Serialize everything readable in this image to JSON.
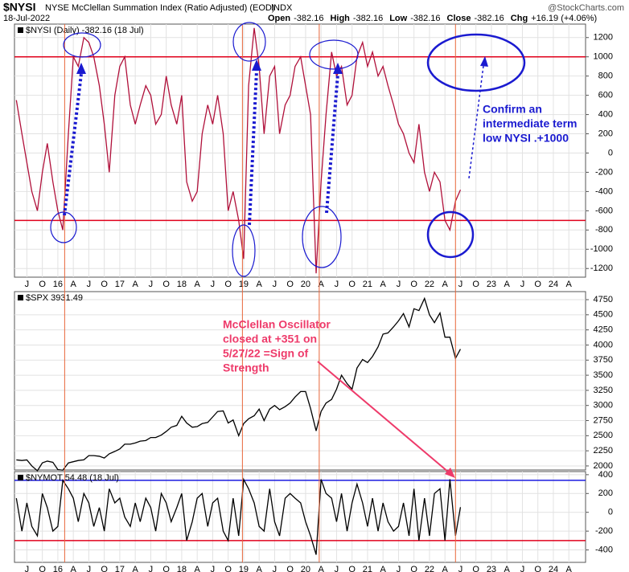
{
  "header": {
    "symbol": "$NYSI",
    "name": "NYSE McClellan Summation Index (Ratio Adjusted) (EOD)",
    "exchange": "INDX",
    "date": "18-Jul-2022",
    "source": "@StockCharts.com",
    "ohlc": [
      {
        "label": "Open",
        "value": -382.16
      },
      {
        "label": "High",
        "value": -382.16
      },
      {
        "label": "Low",
        "value": -382.16
      },
      {
        "label": "Close",
        "value": -382.16
      }
    ],
    "change_label": "Chg",
    "change": "+16.19 (+4.06%)"
  },
  "annotations": {
    "confirm": [
      "Confirm an",
      "intermediate term",
      "low NYSI .+1000"
    ],
    "oscillator": [
      "McClellan Oscillator",
      "closed at +351 on",
      "5/27/22 =Sign of",
      "Strength"
    ]
  },
  "chart_data": [
    {
      "type": "line",
      "label": "$NYSI (Daily) -382.16 (18 Jul)",
      "x": [
        2015.33,
        2015.42,
        2015.5,
        2015.58,
        2015.67,
        2015.75,
        2015.83,
        2015.92,
        2016.0,
        2016.08,
        2016.17,
        2016.25,
        2016.33,
        2016.42,
        2016.5,
        2016.58,
        2016.67,
        2016.75,
        2016.83,
        2016.92,
        2017.0,
        2017.08,
        2017.17,
        2017.25,
        2017.33,
        2017.42,
        2017.5,
        2017.58,
        2017.67,
        2017.75,
        2017.83,
        2017.92,
        2018.0,
        2018.08,
        2018.17,
        2018.25,
        2018.33,
        2018.42,
        2018.5,
        2018.58,
        2018.67,
        2018.75,
        2018.83,
        2018.92,
        2019.0,
        2019.08,
        2019.17,
        2019.25,
        2019.33,
        2019.42,
        2019.5,
        2019.58,
        2019.67,
        2019.75,
        2019.83,
        2019.92,
        2020.0,
        2020.08,
        2020.17,
        2020.25,
        2020.33,
        2020.42,
        2020.5,
        2020.58,
        2020.67,
        2020.75,
        2020.83,
        2020.92,
        2021.0,
        2021.08,
        2021.17,
        2021.25,
        2021.33,
        2021.42,
        2021.5,
        2021.58,
        2021.67,
        2021.75,
        2021.83,
        2021.92,
        2022.0,
        2022.08,
        2022.17,
        2022.25,
        2022.33,
        2022.42,
        2022.5
      ],
      "series": [
        {
          "name": "$NYSI",
          "color": "#b0103a",
          "values": [
            550,
            200,
            -100,
            -400,
            -600,
            -200,
            100,
            -300,
            -600,
            -800,
            200,
            1000,
            900,
            1200,
            1150,
            1000,
            700,
            300,
            -200,
            600,
            900,
            1000,
            500,
            300,
            500,
            700,
            600,
            300,
            400,
            800,
            500,
            300,
            600,
            -300,
            -500,
            -400,
            200,
            500,
            300,
            600,
            200,
            -600,
            -400,
            -700,
            -1100,
            700,
            1300,
            900,
            200,
            800,
            900,
            200,
            500,
            600,
            900,
            1000,
            700,
            400,
            -1250,
            -300,
            400,
            1050,
            800,
            900,
            500,
            600,
            1000,
            1150,
            900,
            1050,
            800,
            900,
            700,
            500,
            300,
            200,
            0,
            -100,
            300,
            -200,
            -400,
            -200,
            -300,
            -700,
            -800,
            -500,
            -382.16
          ]
        }
      ],
      "xlim": [
        2015.3,
        2024.52
      ],
      "ylim": [
        -1290,
        1340
      ],
      "yticks": [
        -1200,
        -1000,
        -800,
        -600,
        -400,
        -200,
        0,
        200,
        400,
        600,
        800,
        1000,
        1200
      ],
      "xticks": [
        {
          "value": 2015.5,
          "label": "J"
        },
        {
          "value": 2015.75,
          "label": "O"
        },
        {
          "value": 2016,
          "label": "16"
        },
        {
          "value": 2016.25,
          "label": "A"
        },
        {
          "value": 2016.5,
          "label": "J"
        },
        {
          "value": 2016.75,
          "label": "O"
        },
        {
          "value": 2017,
          "label": "17"
        },
        {
          "value": 2017.25,
          "label": "A"
        },
        {
          "value": 2017.5,
          "label": "J"
        },
        {
          "value": 2017.75,
          "label": "O"
        },
        {
          "value": 2018,
          "label": "18"
        },
        {
          "value": 2018.25,
          "label": "A"
        },
        {
          "value": 2018.5,
          "label": "J"
        },
        {
          "value": 2018.75,
          "label": "O"
        },
        {
          "value": 2019,
          "label": "19"
        },
        {
          "value": 2019.25,
          "label": "A"
        },
        {
          "value": 2019.5,
          "label": "J"
        },
        {
          "value": 2019.75,
          "label": "O"
        },
        {
          "value": 2020,
          "label": "20"
        },
        {
          "value": 2020.25,
          "label": "A"
        },
        {
          "value": 2020.5,
          "label": "J"
        },
        {
          "value": 2020.75,
          "label": "O"
        },
        {
          "value": 2021,
          "label": "21"
        },
        {
          "value": 2021.25,
          "label": "A"
        },
        {
          "value": 2021.5,
          "label": "J"
        },
        {
          "value": 2021.75,
          "label": "O"
        },
        {
          "value": 2022,
          "label": "22"
        },
        {
          "value": 2022.25,
          "label": "A"
        },
        {
          "value": 2022.5,
          "label": "J"
        },
        {
          "value": 2022.75,
          "label": "O"
        },
        {
          "value": 2023,
          "label": "23"
        },
        {
          "value": 2023.25,
          "label": "A"
        },
        {
          "value": 2023.5,
          "label": "J"
        },
        {
          "value": 2023.75,
          "label": "O"
        },
        {
          "value": 2024,
          "label": "24"
        },
        {
          "value": 2024.25,
          "label": "A"
        }
      ],
      "hlines": [
        {
          "value": 1000,
          "color": "#e0001b"
        },
        {
          "value": -700,
          "color": "#e0001b"
        }
      ],
      "vlines": [
        2016.11,
        2018.98,
        2020.22,
        2022.42
      ],
      "vline_color": "#e8663a",
      "grid": true
    },
    {
      "type": "line",
      "label": "$SPX 3931.49",
      "x": [
        2015.33,
        2015.42,
        2015.5,
        2015.58,
        2015.67,
        2015.75,
        2015.83,
        2015.92,
        2016.0,
        2016.08,
        2016.17,
        2016.25,
        2016.33,
        2016.42,
        2016.5,
        2016.58,
        2016.67,
        2016.75,
        2016.83,
        2016.92,
        2017.0,
        2017.08,
        2017.17,
        2017.25,
        2017.33,
        2017.42,
        2017.5,
        2017.58,
        2017.67,
        2017.75,
        2017.83,
        2017.92,
        2018.0,
        2018.08,
        2018.17,
        2018.25,
        2018.33,
        2018.42,
        2018.5,
        2018.58,
        2018.67,
        2018.75,
        2018.83,
        2018.92,
        2019.0,
        2019.08,
        2019.17,
        2019.25,
        2019.33,
        2019.42,
        2019.5,
        2019.58,
        2019.67,
        2019.75,
        2019.83,
        2019.92,
        2020.0,
        2020.08,
        2020.17,
        2020.25,
        2020.33,
        2020.42,
        2020.5,
        2020.58,
        2020.67,
        2020.75,
        2020.83,
        2020.92,
        2021.0,
        2021.08,
        2021.17,
        2021.25,
        2021.33,
        2021.42,
        2021.5,
        2021.58,
        2021.67,
        2021.75,
        2021.83,
        2021.92,
        2022.0,
        2022.08,
        2022.17,
        2022.25,
        2022.33,
        2022.42,
        2022.5
      ],
      "series": [
        {
          "name": "$SPX",
          "color": "#000000",
          "values": [
            2100,
            2090,
            2100,
            2000,
            1920,
            2050,
            2080,
            2060,
            1940,
            1930,
            2050,
            2070,
            2090,
            2100,
            2170,
            2170,
            2160,
            2130,
            2200,
            2240,
            2280,
            2360,
            2360,
            2380,
            2410,
            2420,
            2470,
            2470,
            2510,
            2570,
            2640,
            2670,
            2820,
            2710,
            2640,
            2650,
            2700,
            2720,
            2810,
            2900,
            2910,
            2710,
            2760,
            2500,
            2700,
            2780,
            2830,
            2940,
            2750,
            2940,
            3000,
            2930,
            2980,
            3040,
            3140,
            3230,
            3230,
            2950,
            2580,
            2900,
            3040,
            3100,
            3270,
            3500,
            3360,
            3270,
            3620,
            3760,
            3710,
            3810,
            3970,
            4180,
            4200,
            4300,
            4400,
            4520,
            4300,
            4600,
            4570,
            4770,
            4500,
            4370,
            4530,
            4130,
            4130,
            3780,
            3931.49
          ]
        }
      ],
      "xlim": [
        2015.3,
        2024.52
      ],
      "ylim": [
        1933,
        4883
      ],
      "yticks": [
        2000,
        2250,
        2500,
        2750,
        3000,
        3250,
        3500,
        3750,
        4000,
        4250,
        4500,
        4750
      ],
      "grid": true
    },
    {
      "type": "line",
      "label": "$NYMOT 54.48 (18 Jul)",
      "x": [
        2015.33,
        2015.42,
        2015.5,
        2015.58,
        2015.67,
        2015.75,
        2015.83,
        2015.92,
        2016.0,
        2016.08,
        2016.17,
        2016.25,
        2016.33,
        2016.42,
        2016.5,
        2016.58,
        2016.67,
        2016.75,
        2016.83,
        2016.92,
        2017.0,
        2017.08,
        2017.17,
        2017.25,
        2017.33,
        2017.42,
        2017.5,
        2017.58,
        2017.67,
        2017.75,
        2017.83,
        2017.92,
        2018.0,
        2018.08,
        2018.17,
        2018.25,
        2018.33,
        2018.42,
        2018.5,
        2018.58,
        2018.67,
        2018.75,
        2018.83,
        2018.92,
        2019.0,
        2019.08,
        2019.17,
        2019.25,
        2019.33,
        2019.42,
        2019.5,
        2019.58,
        2019.67,
        2019.75,
        2019.83,
        2019.92,
        2020.0,
        2020.08,
        2020.17,
        2020.25,
        2020.33,
        2020.42,
        2020.5,
        2020.58,
        2020.67,
        2020.75,
        2020.83,
        2020.92,
        2021.0,
        2021.08,
        2021.17,
        2021.25,
        2021.33,
        2021.42,
        2021.5,
        2021.58,
        2021.67,
        2021.75,
        2021.83,
        2021.92,
        2022.0,
        2022.08,
        2022.17,
        2022.25,
        2022.33,
        2022.42,
        2022.5
      ],
      "series": [
        {
          "name": "$NYMOT",
          "color": "#000000",
          "values": [
            150,
            -200,
            100,
            -150,
            -250,
            200,
            50,
            -200,
            -150,
            340,
            250,
            150,
            -100,
            200,
            100,
            -150,
            50,
            -200,
            250,
            100,
            150,
            -50,
            -150,
            100,
            -100,
            150,
            50,
            -200,
            200,
            100,
            -100,
            50,
            200,
            -300,
            -100,
            150,
            200,
            -150,
            100,
            150,
            -200,
            -300,
            150,
            -250,
            350,
            250,
            100,
            -150,
            -200,
            250,
            -100,
            -250,
            150,
            200,
            150,
            100,
            -100,
            -250,
            -450,
            350,
            200,
            150,
            -100,
            200,
            -200,
            100,
            300,
            100,
            -150,
            150,
            -200,
            100,
            -100,
            -200,
            -150,
            100,
            -250,
            250,
            -300,
            150,
            -250,
            200,
            250,
            -300,
            351,
            -250,
            54.48
          ]
        }
      ],
      "xlim": [
        2015.3,
        2024.52
      ],
      "ylim": [
        -532,
        433
      ],
      "yticks": [
        -400,
        -200,
        0,
        200,
        400
      ],
      "xticks": [
        {
          "value": 2015.5,
          "label": "J"
        },
        {
          "value": 2015.75,
          "label": "O"
        },
        {
          "value": 2016,
          "label": "16"
        },
        {
          "value": 2016.25,
          "label": "A"
        },
        {
          "value": 2016.5,
          "label": "J"
        },
        {
          "value": 2016.75,
          "label": "O"
        },
        {
          "value": 2017,
          "label": "17"
        },
        {
          "value": 2017.25,
          "label": "A"
        },
        {
          "value": 2017.5,
          "label": "J"
        },
        {
          "value": 2017.75,
          "label": "O"
        },
        {
          "value": 2018,
          "label": "18"
        },
        {
          "value": 2018.25,
          "label": "A"
        },
        {
          "value": 2018.5,
          "label": "J"
        },
        {
          "value": 2018.75,
          "label": "O"
        },
        {
          "value": 2019,
          "label": "19"
        },
        {
          "value": 2019.25,
          "label": "A"
        },
        {
          "value": 2019.5,
          "label": "J"
        },
        {
          "value": 2019.75,
          "label": "O"
        },
        {
          "value": 2020,
          "label": "20"
        },
        {
          "value": 2020.25,
          "label": "A"
        },
        {
          "value": 2020.5,
          "label": "J"
        },
        {
          "value": 2020.75,
          "label": "O"
        },
        {
          "value": 2021,
          "label": "21"
        },
        {
          "value": 2021.25,
          "label": "A"
        },
        {
          "value": 2021.5,
          "label": "J"
        },
        {
          "value": 2021.75,
          "label": "O"
        },
        {
          "value": 2022,
          "label": "22"
        },
        {
          "value": 2022.25,
          "label": "A"
        },
        {
          "value": 2022.5,
          "label": "J"
        },
        {
          "value": 2022.75,
          "label": "O"
        },
        {
          "value": 2023,
          "label": "23"
        },
        {
          "value": 2023.25,
          "label": "A"
        },
        {
          "value": 2023.5,
          "label": "J"
        },
        {
          "value": 2023.75,
          "label": "O"
        },
        {
          "value": 2024,
          "label": "24"
        },
        {
          "value": 2024.25,
          "label": "A"
        }
      ],
      "hlines": [
        {
          "value": 340,
          "color": "#1a1ae0"
        },
        {
          "value": -300,
          "color": "#e0001b"
        }
      ],
      "grid": true
    }
  ]
}
